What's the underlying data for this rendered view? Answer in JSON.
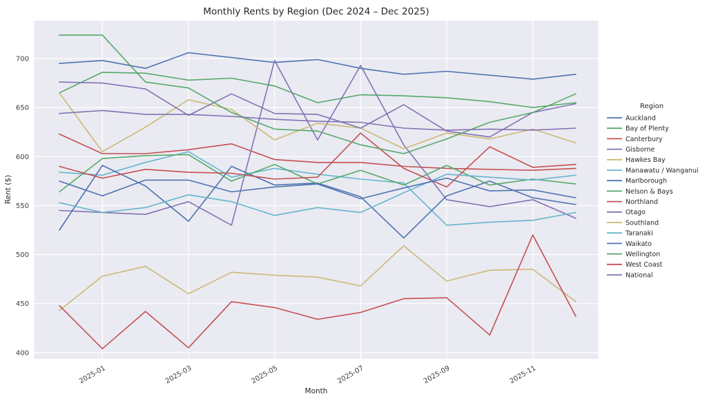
{
  "figure": {
    "title": "Monthly Rents by Region (Dec 2024 – Dec 2025)",
    "xlabel": "Month",
    "ylabel": "Rent ($)",
    "legend_title": "Region"
  },
  "chart_data": {
    "type": "line",
    "x": [
      "2024-12",
      "2025-01",
      "2025-02",
      "2025-03",
      "2025-04",
      "2025-05",
      "2025-06",
      "2025-07",
      "2025-08",
      "2025-09",
      "2025-10",
      "2025-11",
      "2025-12"
    ],
    "x_tick_indices": [
      1,
      3,
      5,
      7,
      9,
      11
    ],
    "x_tick_labels": [
      "2025-01",
      "2025-03",
      "2025-05",
      "2025-07",
      "2025-09",
      "2025-11"
    ],
    "yticks": [
      400,
      450,
      500,
      550,
      600,
      650,
      700
    ],
    "ylim": [
      394,
      739
    ],
    "grid": true,
    "plot_bg": "#eaeaf2",
    "grid_color": "#ffffff",
    "legend_position": "right-outside",
    "title": "Monthly Rents by Region (Dec 2024 – Dec 2025)",
    "xlabel": "Month",
    "ylabel": "Rent ($)",
    "series": [
      {
        "name": "Auckland",
        "color": "#4c72b0",
        "values": [
          695,
          698,
          690,
          706,
          701,
          696,
          699,
          690,
          684,
          687,
          683,
          679,
          684
        ]
      },
      {
        "name": "Bay of Plenty",
        "color": "#55a868",
        "values": [
          665,
          686,
          685,
          678,
          680,
          672,
          655,
          663,
          662,
          660,
          656,
          650,
          655
        ]
      },
      {
        "name": "Canterbury",
        "color": "#c44e52",
        "values": [
          623,
          603,
          603,
          607,
          613,
          597,
          594,
          594,
          590,
          588,
          587,
          586,
          588
        ]
      },
      {
        "name": "Gisborne",
        "color": "#8172b2",
        "values": [
          545,
          543,
          541,
          554,
          530,
          698,
          617,
          693,
          612,
          556,
          549,
          556,
          537
        ]
      },
      {
        "name": "Hawkes Bay",
        "color": "#ccb974",
        "values": [
          665,
          605,
          630,
          658,
          648,
          617,
          634,
          629,
          608,
          624,
          618,
          628,
          614
        ]
      },
      {
        "name": "Manawatu / Wanganui",
        "color": "#64b5cd",
        "values": [
          584,
          581,
          594,
          605,
          579,
          588,
          582,
          577,
          573,
          530,
          533,
          535,
          543
        ]
      },
      {
        "name": "Marlborough",
        "color": "#4c72b0",
        "values": [
          525,
          591,
          570,
          534,
          590,
          571,
          573,
          559,
          517,
          560,
          575,
          558,
          551
        ]
      },
      {
        "name": "Nelson & Bays",
        "color": "#55a868",
        "values": [
          564,
          598,
          601,
          602,
          575,
          592,
          572,
          586,
          571,
          591,
          571,
          577,
          572
        ]
      },
      {
        "name": "Northland",
        "color": "#c44e52",
        "values": [
          590,
          578,
          587,
          584,
          583,
          577,
          579,
          624,
          588,
          569,
          610,
          589,
          592
        ]
      },
      {
        "name": "Otago",
        "color": "#8172b2",
        "values": [
          676,
          675,
          669,
          642,
          664,
          644,
          643,
          629,
          653,
          626,
          620,
          645,
          654
        ]
      },
      {
        "name": "Southland",
        "color": "#ccb974",
        "values": [
          443,
          478,
          488,
          460,
          482,
          479,
          477,
          468,
          509,
          473,
          484,
          485,
          452
        ]
      },
      {
        "name": "Taranaki",
        "color": "#64b5cd",
        "values": [
          553,
          543,
          548,
          561,
          554,
          540,
          548,
          543,
          563,
          582,
          579,
          576,
          581
        ]
      },
      {
        "name": "Waikato",
        "color": "#4c72b0",
        "values": [
          575,
          560,
          576,
          576,
          564,
          569,
          572,
          557,
          568,
          578,
          565,
          566,
          558
        ]
      },
      {
        "name": "Wellington",
        "color": "#55a868",
        "values": [
          724,
          724,
          676,
          670,
          645,
          628,
          626,
          612,
          603,
          618,
          635,
          645,
          664
        ]
      },
      {
        "name": "West Coast",
        "color": "#c44e52",
        "values": [
          448,
          404,
          442,
          405,
          452,
          446,
          434,
          441,
          455,
          456,
          418,
          520,
          437
        ]
      },
      {
        "name": "National",
        "color": "#8172b2",
        "values": [
          644,
          647,
          643,
          643,
          641,
          638,
          636,
          635,
          629,
          627,
          628,
          627,
          629
        ]
      }
    ]
  }
}
